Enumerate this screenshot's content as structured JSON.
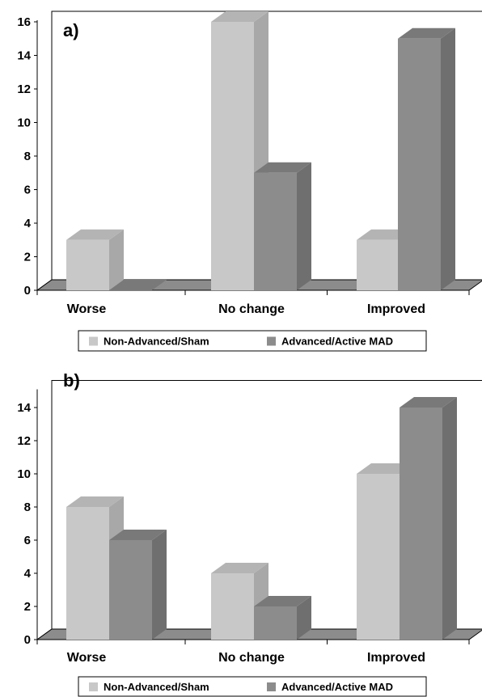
{
  "chart_data": [
    {
      "type": "bar",
      "panel_label": "a)",
      "categories": [
        "Worse",
        "No change",
        "Improved"
      ],
      "series": [
        {
          "name": "Non-Advanced/Sham",
          "values": [
            3,
            16,
            3
          ]
        },
        {
          "name": "Advanced/Active MAD",
          "values": [
            0,
            7,
            15
          ]
        }
      ],
      "yticks": [
        "0",
        "2",
        "4",
        "6",
        "8",
        "10",
        "12",
        "14",
        "16"
      ],
      "ylim": [
        0,
        16
      ],
      "legend_position": "bottom",
      "colors": [
        "#c8c8c8",
        "#8c8c8c"
      ]
    },
    {
      "type": "bar",
      "panel_label": "b)",
      "categories": [
        "Worse",
        "No change",
        "Improved"
      ],
      "series": [
        {
          "name": "Non-Advanced/Sham",
          "values": [
            8,
            4,
            10
          ]
        },
        {
          "name": "Advanced/Active MAD",
          "values": [
            6,
            2,
            14
          ]
        }
      ],
      "yticks": [
        "0",
        "2",
        "4",
        "6",
        "8",
        "10",
        "12",
        "14"
      ],
      "ylim": [
        0,
        15
      ],
      "legend_position": "bottom",
      "colors": [
        "#c8c8c8",
        "#8c8c8c"
      ]
    }
  ]
}
